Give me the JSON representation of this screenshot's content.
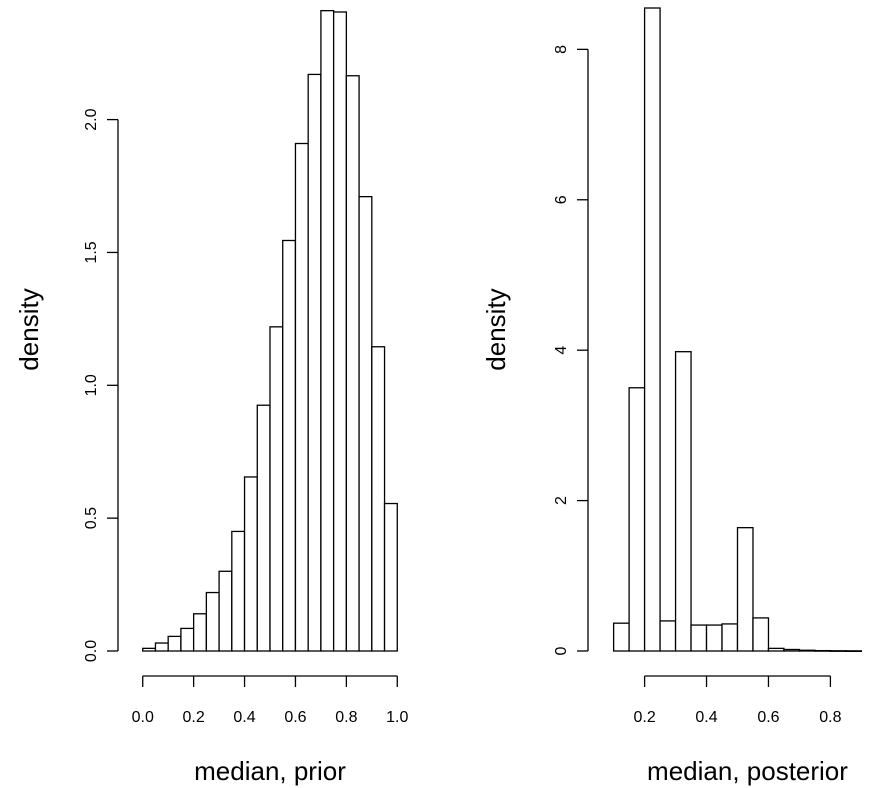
{
  "chart_data": [
    {
      "type": "bar",
      "histogram": true,
      "xlabel": "median, prior",
      "ylabel": "density",
      "bin_edges": [
        0.0,
        0.05,
        0.1,
        0.15,
        0.2,
        0.25,
        0.3,
        0.35,
        0.4,
        0.45,
        0.5,
        0.55,
        0.6,
        0.65,
        0.7,
        0.75,
        0.8,
        0.85,
        0.9,
        0.95,
        1.0
      ],
      "values": [
        0.01,
        0.03,
        0.055,
        0.085,
        0.14,
        0.22,
        0.3,
        0.45,
        0.655,
        0.925,
        1.22,
        1.545,
        1.91,
        2.17,
        2.41,
        2.405,
        2.165,
        1.71,
        1.145,
        0.555
      ],
      "xticks": [
        0.0,
        0.2,
        0.4,
        0.6,
        0.8,
        1.0
      ],
      "xtick_labels": [
        "0.0",
        "0.2",
        "0.4",
        "0.6",
        "0.8",
        "1.0"
      ],
      "yticks": [
        0.0,
        0.5,
        1.0,
        1.5,
        2.0
      ],
      "ytick_labels": [
        "0.0",
        "0.5",
        "1.0",
        "1.5",
        "2.0"
      ],
      "xlim": [
        -0.05,
        1.05
      ],
      "ylim": [
        0,
        2.42
      ]
    },
    {
      "type": "bar",
      "histogram": true,
      "xlabel": "median, posterior",
      "ylabel": "density",
      "bin_edges": [
        0.1,
        0.15,
        0.2,
        0.25,
        0.3,
        0.35,
        0.4,
        0.45,
        0.5,
        0.55,
        0.6,
        0.65,
        0.7,
        0.75,
        0.8,
        0.85,
        0.9
      ],
      "values": [
        0.37,
        3.5,
        8.55,
        0.4,
        3.98,
        0.345,
        0.345,
        0.36,
        1.64,
        0.44,
        0.035,
        0.02,
        0.01,
        0.005,
        0.003,
        0.002
      ],
      "xticks": [
        0.2,
        0.4,
        0.6,
        0.8
      ],
      "xtick_labels": [
        "0.2",
        "0.4",
        "0.6",
        "0.8"
      ],
      "yticks": [
        0,
        2,
        4,
        6,
        8
      ],
      "ytick_labels": [
        "0",
        "2",
        "4",
        "6",
        "8"
      ],
      "xlim": [
        0.056,
        0.944
      ],
      "ylim": [
        0,
        8.55
      ]
    }
  ]
}
